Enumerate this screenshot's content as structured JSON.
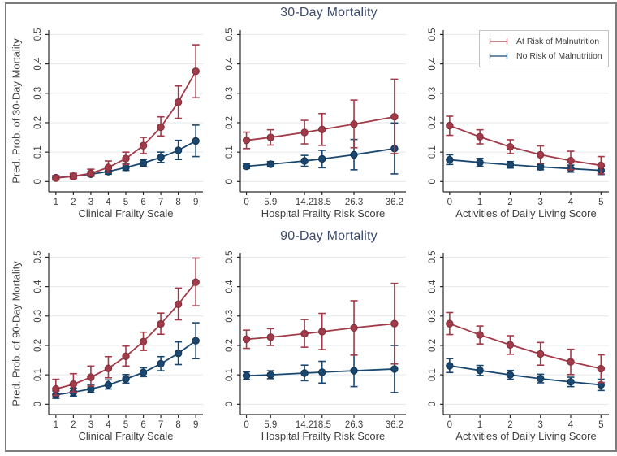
{
  "figure": {
    "row_titles": [
      "30-Day Mortality",
      "90-Day Mortality"
    ],
    "legend": {
      "position": "top-right-panel",
      "items": [
        {
          "label": "At Risk of Malnutrition",
          "color": "#a23b49",
          "marker": "errorbar-icon"
        },
        {
          "label": "No Risk of Malnutrition",
          "color": "#1a476f",
          "marker": "errorbar-icon"
        }
      ]
    },
    "colors": {
      "at_risk": "#a23b49",
      "at_risk_edge": "#7f2c38",
      "no_risk": "#1a476f",
      "no_risk_edge": "#123350",
      "title": "#3e4c6d",
      "grid": "#e4e7eb",
      "axis": "#2b2b2b",
      "text": "#3f3f3f",
      "frame_border": "#7d7d7d"
    }
  },
  "chart_data": [
    {
      "type": "line",
      "panel": "30-day-clinical-frailty",
      "xlabel": "Clinical Frailty Scale",
      "ylabel": "Pred. Prob. of 30-Day Mortality",
      "x": [
        1,
        2,
        3,
        4,
        5,
        6,
        7,
        8,
        9
      ],
      "xtick_labels": [
        "1",
        "2",
        "3",
        "4",
        "5",
        "6",
        "7",
        "8",
        "9"
      ],
      "xlim": [
        0.59,
        9.41
      ],
      "ylim": [
        -0.035,
        0.515
      ],
      "yticks": [
        0,
        0.1,
        0.2,
        0.3,
        0.4,
        0.5
      ],
      "ytick_labels": [
        "0",
        "0.1",
        "0.2",
        "0.3",
        "0.4",
        "0.5"
      ],
      "grid": true,
      "series": [
        {
          "name": "At Risk of Malnutrition",
          "color": "#a23b49",
          "edge": "#7f2c38",
          "y": [
            0.012,
            0.018,
            0.028,
            0.048,
            0.078,
            0.122,
            0.185,
            0.27,
            0.375
          ],
          "lo": [
            0.005,
            0.01,
            0.018,
            0.032,
            0.058,
            0.095,
            0.155,
            0.215,
            0.285
          ],
          "hi": [
            0.02,
            0.028,
            0.042,
            0.07,
            0.1,
            0.15,
            0.22,
            0.325,
            0.465
          ]
        },
        {
          "name": "No Risk of Malnutrition",
          "color": "#1a476f",
          "edge": "#123350",
          "y": [
            0.013,
            0.018,
            0.025,
            0.034,
            0.048,
            0.063,
            0.082,
            0.106,
            0.138
          ],
          "lo": [
            0.008,
            0.012,
            0.018,
            0.025,
            0.038,
            0.053,
            0.065,
            0.075,
            0.085
          ],
          "hi": [
            0.02,
            0.025,
            0.033,
            0.045,
            0.06,
            0.075,
            0.1,
            0.14,
            0.192
          ]
        }
      ]
    },
    {
      "type": "line",
      "panel": "30-day-hospital-frailty",
      "xlabel": "Hospital Frailty Risk Score",
      "ylabel": "",
      "x": [
        0,
        5.9,
        14.2,
        18.5,
        26.3,
        36.2
      ],
      "xtick_labels": [
        "0",
        "5.9",
        "14.2",
        "18.5",
        "26.3",
        "36.2"
      ],
      "xlim": [
        -1.5,
        39
      ],
      "ylim": [
        -0.035,
        0.515
      ],
      "yticks": [
        0,
        0.1,
        0.2,
        0.3,
        0.4,
        0.5
      ],
      "ytick_labels": [
        "0",
        "0.1",
        "0.2",
        "0.3",
        "0.4",
        "0.5"
      ],
      "grid": true,
      "series": [
        {
          "name": "At Risk of Malnutrition",
          "color": "#a23b49",
          "edge": "#7f2c38",
          "y": [
            0.14,
            0.15,
            0.167,
            0.177,
            0.195,
            0.22
          ],
          "lo": [
            0.112,
            0.124,
            0.128,
            0.123,
            0.115,
            0.095
          ],
          "hi": [
            0.168,
            0.176,
            0.208,
            0.231,
            0.277,
            0.348
          ]
        },
        {
          "name": "No Risk of Malnutrition",
          "color": "#1a476f",
          "edge": "#123350",
          "y": [
            0.052,
            0.059,
            0.07,
            0.077,
            0.091,
            0.112
          ],
          "lo": [
            0.044,
            0.05,
            0.052,
            0.047,
            0.04,
            0.026
          ],
          "hi": [
            0.061,
            0.068,
            0.089,
            0.106,
            0.143,
            0.199
          ]
        }
      ]
    },
    {
      "type": "line",
      "panel": "30-day-adl",
      "xlabel": "Activities of Daily Living Score",
      "ylabel": "",
      "x": [
        0,
        1,
        2,
        3,
        4,
        5
      ],
      "xtick_labels": [
        "0",
        "1",
        "2",
        "3",
        "4",
        "5"
      ],
      "xlim": [
        -0.21,
        5.26
      ],
      "ylim": [
        -0.035,
        0.515
      ],
      "yticks": [
        0,
        0.1,
        0.2,
        0.3,
        0.4,
        0.5
      ],
      "ytick_labels": [
        "0",
        "0.1",
        "0.2",
        "0.3",
        "0.4",
        "0.5"
      ],
      "grid": true,
      "series": [
        {
          "name": "At Risk of Malnutrition",
          "color": "#a23b49",
          "edge": "#7f2c38",
          "y": [
            0.19,
            0.152,
            0.118,
            0.091,
            0.071,
            0.055
          ],
          "lo": [
            0.157,
            0.128,
            0.095,
            0.062,
            0.04,
            0.026
          ],
          "hi": [
            0.222,
            0.176,
            0.142,
            0.121,
            0.103,
            0.085
          ]
        },
        {
          "name": "No Risk of Malnutrition",
          "color": "#1a476f",
          "edge": "#123350",
          "y": [
            0.074,
            0.065,
            0.057,
            0.05,
            0.044,
            0.038
          ],
          "lo": [
            0.058,
            0.052,
            0.046,
            0.04,
            0.032,
            0.024
          ],
          "hi": [
            0.091,
            0.079,
            0.068,
            0.06,
            0.056,
            0.052
          ]
        }
      ]
    },
    {
      "type": "line",
      "panel": "90-day-clinical-frailty",
      "xlabel": "Clinical Frailty Scale",
      "ylabel": "Pred. Prob. of 90-Day Mortality",
      "x": [
        1,
        2,
        3,
        4,
        5,
        6,
        7,
        8,
        9
      ],
      "xtick_labels": [
        "1",
        "2",
        "3",
        "4",
        "5",
        "6",
        "7",
        "8",
        "9"
      ],
      "xlim": [
        0.59,
        9.41
      ],
      "ylim": [
        -0.035,
        0.515
      ],
      "yticks": [
        0,
        0.1,
        0.2,
        0.3,
        0.4,
        0.5
      ],
      "ytick_labels": [
        "0",
        "0.1",
        "0.2",
        "0.3",
        "0.4",
        "0.5"
      ],
      "grid": true,
      "series": [
        {
          "name": "At Risk of Malnutrition",
          "color": "#a23b49",
          "edge": "#7f2c38",
          "y": [
            0.052,
            0.068,
            0.092,
            0.122,
            0.163,
            0.213,
            0.273,
            0.34,
            0.415
          ],
          "lo": [
            0.03,
            0.042,
            0.062,
            0.09,
            0.13,
            0.183,
            0.238,
            0.287,
            0.335
          ],
          "hi": [
            0.085,
            0.104,
            0.13,
            0.162,
            0.198,
            0.245,
            0.31,
            0.395,
            0.497
          ]
        },
        {
          "name": "No Risk of Malnutrition",
          "color": "#1a476f",
          "edge": "#123350",
          "y": [
            0.032,
            0.041,
            0.052,
            0.066,
            0.086,
            0.108,
            0.138,
            0.173,
            0.216
          ],
          "lo": [
            0.02,
            0.028,
            0.04,
            0.052,
            0.072,
            0.094,
            0.114,
            0.135,
            0.155
          ],
          "hi": [
            0.045,
            0.055,
            0.067,
            0.083,
            0.101,
            0.124,
            0.162,
            0.212,
            0.277
          ]
        }
      ]
    },
    {
      "type": "line",
      "panel": "90-day-hospital-frailty",
      "xlabel": "Hospital Frailty Risk Score",
      "ylabel": "",
      "x": [
        0,
        5.9,
        14.2,
        18.5,
        26.3,
        36.2
      ],
      "xtick_labels": [
        "0",
        "5.9",
        "14.2",
        "18.5",
        "26.3",
        "36.2"
      ],
      "xlim": [
        -1.5,
        39
      ],
      "ylim": [
        -0.035,
        0.515
      ],
      "yticks": [
        0,
        0.1,
        0.2,
        0.3,
        0.4,
        0.5
      ],
      "ytick_labels": [
        "0",
        "0.1",
        "0.2",
        "0.3",
        "0.4",
        "0.5"
      ],
      "grid": true,
      "series": [
        {
          "name": "At Risk of Malnutrition",
          "color": "#a23b49",
          "edge": "#7f2c38",
          "y": [
            0.221,
            0.228,
            0.24,
            0.247,
            0.26,
            0.274
          ],
          "lo": [
            0.19,
            0.2,
            0.194,
            0.186,
            0.167,
            0.137
          ],
          "hi": [
            0.252,
            0.257,
            0.288,
            0.309,
            0.352,
            0.411
          ]
        },
        {
          "name": "No Risk of Malnutrition",
          "color": "#1a476f",
          "edge": "#123350",
          "y": [
            0.097,
            0.1,
            0.106,
            0.109,
            0.114,
            0.12
          ],
          "lo": [
            0.085,
            0.087,
            0.08,
            0.072,
            0.06,
            0.04
          ],
          "hi": [
            0.11,
            0.114,
            0.133,
            0.146,
            0.168,
            0.2
          ]
        }
      ]
    },
    {
      "type": "line",
      "panel": "90-day-adl",
      "xlabel": "Activities of Daily Living Score",
      "ylabel": "",
      "x": [
        0,
        1,
        2,
        3,
        4,
        5
      ],
      "xtick_labels": [
        "0",
        "1",
        "2",
        "3",
        "4",
        "5"
      ],
      "xlim": [
        -0.21,
        5.26
      ],
      "ylim": [
        -0.035,
        0.515
      ],
      "yticks": [
        0,
        0.1,
        0.2,
        0.3,
        0.4,
        0.5
      ],
      "ytick_labels": [
        "0",
        "0.1",
        "0.2",
        "0.3",
        "0.4",
        "0.5"
      ],
      "grid": true,
      "series": [
        {
          "name": "At Risk of Malnutrition",
          "color": "#a23b49",
          "edge": "#7f2c38",
          "y": [
            0.274,
            0.236,
            0.202,
            0.171,
            0.144,
            0.121
          ],
          "lo": [
            0.237,
            0.205,
            0.17,
            0.133,
            0.101,
            0.074
          ],
          "hi": [
            0.312,
            0.266,
            0.233,
            0.21,
            0.187,
            0.168
          ]
        },
        {
          "name": "No Risk of Malnutrition",
          "color": "#1a476f",
          "edge": "#123350",
          "y": [
            0.131,
            0.115,
            0.1,
            0.087,
            0.076,
            0.066
          ],
          "lo": [
            0.108,
            0.098,
            0.085,
            0.073,
            0.06,
            0.047
          ],
          "hi": [
            0.155,
            0.132,
            0.115,
            0.102,
            0.092,
            0.085
          ]
        }
      ]
    }
  ]
}
